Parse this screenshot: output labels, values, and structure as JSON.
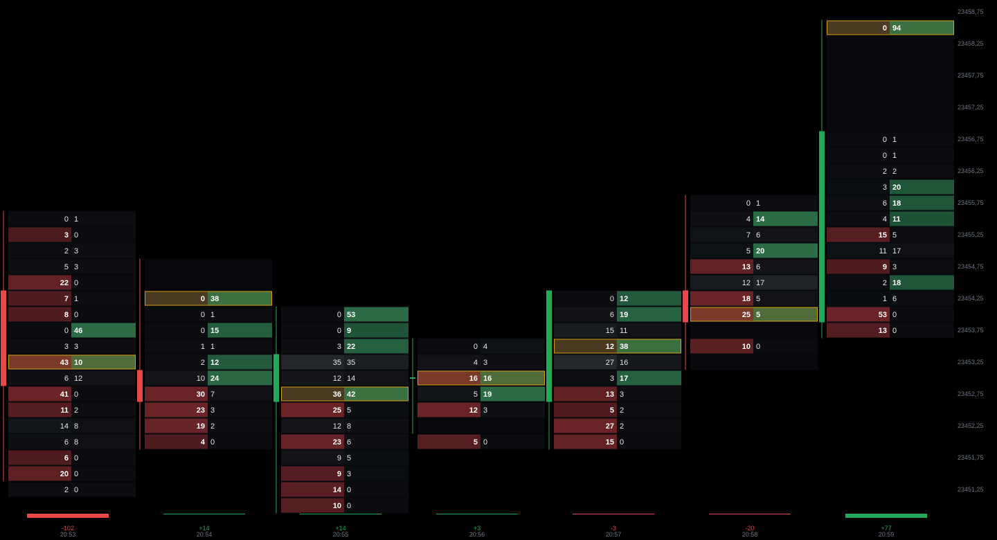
{
  "colors": {
    "background": "#000000",
    "up": "#22a95a",
    "down": "#e84848",
    "bid_heat": "#5a2024",
    "ask_heat": "#1f5a38",
    "poc_fill": "#7a3a2a",
    "poc_border": "#d4a017",
    "neutral": "#15181c",
    "axis_text": "#6f7680",
    "grid": "#2a2d31"
  },
  "chart_data": {
    "type": "footprint",
    "tick": 0.25,
    "y_axis": {
      "labels": [
        "23458,75",
        "23458,25",
        "23457,75",
        "23457,25",
        "23456,75",
        "23456,25",
        "23455,75",
        "23455,25",
        "23454,75",
        "23454,25",
        "23453,75",
        "23453,25",
        "23452,75",
        "23452,25",
        "23451,75",
        "23451,25"
      ],
      "values": [
        23458.75,
        23458.25,
        23457.75,
        23457.25,
        23456.75,
        23456.25,
        23455.75,
        23455.25,
        23454.75,
        23454.25,
        23453.75,
        23453.25,
        23452.75,
        23452.25,
        23451.75,
        23451.25
      ]
    },
    "bars": [
      {
        "time": "20:53",
        "delta_label": "-102",
        "delta": -102,
        "open": 23454.25,
        "close": 23453.0,
        "high": 23455.5,
        "low": 23451.5,
        "rows": [
          {
            "price": 23455.5,
            "bid": 0,
            "ask": 1
          },
          {
            "price": 23455.25,
            "bid": 3,
            "ask": 0
          },
          {
            "price": 23455.0,
            "bid": 2,
            "ask": 3
          },
          {
            "price": 23454.75,
            "bid": 5,
            "ask": 3
          },
          {
            "price": 23454.5,
            "bid": 22,
            "ask": 0
          },
          {
            "price": 23454.25,
            "bid": 7,
            "ask": 1
          },
          {
            "price": 23454.0,
            "bid": 8,
            "ask": 0
          },
          {
            "price": 23453.75,
            "bid": 0,
            "ask": 46
          },
          {
            "price": 23453.5,
            "bid": 3,
            "ask": 3
          },
          {
            "price": 23453.25,
            "bid": 43,
            "ask": 10,
            "poc": true
          },
          {
            "price": 23453.0,
            "bid": 6,
            "ask": 12
          },
          {
            "price": 23452.75,
            "bid": 41,
            "ask": 0
          },
          {
            "price": 23452.5,
            "bid": 11,
            "ask": 2
          },
          {
            "price": 23452.25,
            "bid": 14,
            "ask": 8
          },
          {
            "price": 23452.0,
            "bid": 6,
            "ask": 8
          },
          {
            "price": 23451.75,
            "bid": 6,
            "ask": 0
          },
          {
            "price": 23451.5,
            "bid": 20,
            "ask": 0
          },
          {
            "price": 23451.25,
            "bid": 2,
            "ask": 0
          }
        ]
      },
      {
        "time": "20:54",
        "delta_label": "+14",
        "delta": 14,
        "open": 23453.0,
        "close": 23452.75,
        "high": 23454.75,
        "low": 23452.0,
        "rows": [
          {
            "price": 23454.25,
            "bid": 0,
            "ask": 38,
            "poc": true
          },
          {
            "price": 23454.0,
            "bid": 0,
            "ask": 1
          },
          {
            "price": 23453.75,
            "bid": 0,
            "ask": 15
          },
          {
            "price": 23453.5,
            "bid": 1,
            "ask": 1
          },
          {
            "price": 23453.25,
            "bid": 2,
            "ask": 12
          },
          {
            "price": 23453.0,
            "bid": 10,
            "ask": 24
          },
          {
            "price": 23452.75,
            "bid": 30,
            "ask": 7
          },
          {
            "price": 23452.5,
            "bid": 23,
            "ask": 3
          },
          {
            "price": 23452.25,
            "bid": 19,
            "ask": 2
          },
          {
            "price": 23452.0,
            "bid": 4,
            "ask": 0
          }
        ]
      },
      {
        "time": "20:55",
        "delta_label": "+14",
        "delta": 14,
        "open": 23452.75,
        "close": 23453.25,
        "high": 23454.0,
        "low": 23451.0,
        "rows": [
          {
            "price": 23454.0,
            "bid": 0,
            "ask": 53
          },
          {
            "price": 23453.75,
            "bid": 0,
            "ask": 9
          },
          {
            "price": 23453.5,
            "bid": 3,
            "ask": 22
          },
          {
            "price": 23453.25,
            "bid": 35,
            "ask": 35
          },
          {
            "price": 23453.0,
            "bid": 12,
            "ask": 14
          },
          {
            "price": 23452.75,
            "bid": 36,
            "ask": 42,
            "poc": true
          },
          {
            "price": 23452.5,
            "bid": 25,
            "ask": 5
          },
          {
            "price": 23452.25,
            "bid": 12,
            "ask": 8
          },
          {
            "price": 23452.0,
            "bid": 23,
            "ask": 6
          },
          {
            "price": 23451.75,
            "bid": 9,
            "ask": 5
          },
          {
            "price": 23451.5,
            "bid": 9,
            "ask": 3
          },
          {
            "price": 23451.25,
            "bid": 14,
            "ask": 0
          },
          {
            "price": 23451.0,
            "bid": 10,
            "ask": 0
          }
        ]
      },
      {
        "time": "20:56",
        "delta_label": "+3",
        "delta": 3,
        "open": 23453.0,
        "close": 23453.0,
        "high": 23453.5,
        "low": 23452.25,
        "rows": [
          {
            "price": 23453.5,
            "bid": 0,
            "ask": 4
          },
          {
            "price": 23453.25,
            "bid": 4,
            "ask": 3
          },
          {
            "price": 23453.0,
            "bid": 16,
            "ask": 16,
            "poc": true
          },
          {
            "price": 23452.75,
            "bid": 5,
            "ask": 19
          },
          {
            "price": 23452.5,
            "bid": 12,
            "ask": 3
          },
          {
            "price": 23452.0,
            "bid": 5,
            "ask": 0
          }
        ]
      },
      {
        "time": "20:57",
        "delta_label": "-3",
        "delta": -3,
        "open": 23452.75,
        "close": 23454.25,
        "high": 23454.25,
        "low": 23452.0,
        "rows": [
          {
            "price": 23454.25,
            "bid": 0,
            "ask": 12
          },
          {
            "price": 23454.0,
            "bid": 6,
            "ask": 19
          },
          {
            "price": 23453.75,
            "bid": 15,
            "ask": 11
          },
          {
            "price": 23453.5,
            "bid": 12,
            "ask": 38,
            "poc": true
          },
          {
            "price": 23453.25,
            "bid": 27,
            "ask": 16
          },
          {
            "price": 23453.0,
            "bid": 3,
            "ask": 17
          },
          {
            "price": 23452.75,
            "bid": 13,
            "ask": 3
          },
          {
            "price": 23452.5,
            "bid": 5,
            "ask": 2
          },
          {
            "price": 23452.25,
            "bid": 27,
            "ask": 2
          },
          {
            "price": 23452.0,
            "bid": 15,
            "ask": 0
          }
        ]
      },
      {
        "time": "20:58",
        "delta_label": "-20",
        "delta": -20,
        "open": 23454.25,
        "close": 23454.0,
        "high": 23455.75,
        "low": 23453.25,
        "rows": [
          {
            "price": 23455.75,
            "bid": 0,
            "ask": 1
          },
          {
            "price": 23455.5,
            "bid": 4,
            "ask": 14
          },
          {
            "price": 23455.25,
            "bid": 7,
            "ask": 6
          },
          {
            "price": 23455.0,
            "bid": 5,
            "ask": 20
          },
          {
            "price": 23454.75,
            "bid": 13,
            "ask": 6
          },
          {
            "price": 23454.5,
            "bid": 12,
            "ask": 17
          },
          {
            "price": 23454.25,
            "bid": 18,
            "ask": 5
          },
          {
            "price": 23454.0,
            "bid": 25,
            "ask": 5,
            "poc": true
          },
          {
            "price": 23453.5,
            "bid": 10,
            "ask": 0
          }
        ]
      },
      {
        "time": "20:59",
        "delta_label": "+77",
        "delta": 77,
        "open": 23454.0,
        "close": 23456.75,
        "high": 23458.5,
        "low": 23453.75,
        "rows": [
          {
            "price": 23458.5,
            "bid": 0,
            "ask": 94,
            "poc": true
          },
          {
            "price": 23456.75,
            "bid": 0,
            "ask": 1
          },
          {
            "price": 23456.5,
            "bid": 0,
            "ask": 1
          },
          {
            "price": 23456.25,
            "bid": 2,
            "ask": 2
          },
          {
            "price": 23456.0,
            "bid": 3,
            "ask": 20
          },
          {
            "price": 23455.75,
            "bid": 6,
            "ask": 18
          },
          {
            "price": 23455.5,
            "bid": 4,
            "ask": 11
          },
          {
            "price": 23455.25,
            "bid": 15,
            "ask": 5
          },
          {
            "price": 23455.0,
            "bid": 11,
            "ask": 17
          },
          {
            "price": 23454.75,
            "bid": 9,
            "ask": 3
          },
          {
            "price": 23454.5,
            "bid": 2,
            "ask": 18
          },
          {
            "price": 23454.25,
            "bid": 1,
            "ask": 6
          },
          {
            "price": 23454.0,
            "bid": 53,
            "ask": 0
          },
          {
            "price": 23453.75,
            "bid": 13,
            "ask": 0
          }
        ]
      }
    ]
  }
}
